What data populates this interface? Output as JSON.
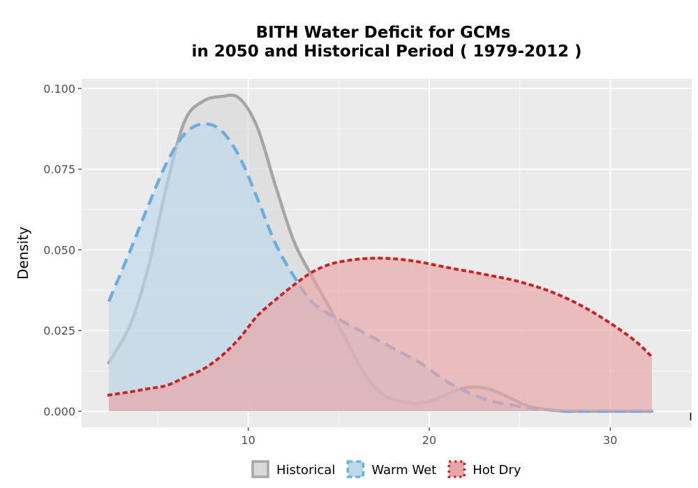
{
  "chart_data": {
    "type": "area",
    "title_line1": "BITH  Water Deficit for GCMs",
    "title_line2": "in 2050 and Historical Period ( 1979-2012 )",
    "xlabel": "",
    "ylabel": "Density",
    "xlim": [
      0.8,
      34.5
    ],
    "ylim": [
      -0.005,
      0.103
    ],
    "x_ticks": [
      10,
      20,
      30
    ],
    "y_ticks": [
      0.0,
      0.025,
      0.05,
      0.075,
      0.1
    ],
    "y_tick_labels": [
      "0.000",
      "0.025",
      "0.050",
      "0.075",
      "0.100"
    ],
    "grid": true,
    "legend_position": "bottom",
    "series": [
      {
        "name": "Historical",
        "line_style": "solid",
        "line_color": "#a6a6a6",
        "fill_color": "#d9d9d9",
        "x": [
          2.3,
          3.5,
          4.5,
          5.5,
          6.5,
          7.5,
          8.5,
          9.5,
          10.5,
          11.5,
          12.5,
          13.5,
          14.5,
          15.5,
          16.5,
          17.5,
          18.5,
          19.5,
          20.5,
          21.5,
          22.5,
          23.5,
          24.5,
          25.5,
          26.5,
          27.5,
          28.5,
          29.5,
          30.5,
          31.5,
          32.3
        ],
        "y": [
          0.015,
          0.027,
          0.045,
          0.07,
          0.09,
          0.096,
          0.0975,
          0.097,
          0.088,
          0.07,
          0.053,
          0.042,
          0.032,
          0.021,
          0.011,
          0.005,
          0.003,
          0.0025,
          0.004,
          0.0065,
          0.0075,
          0.0065,
          0.004,
          0.0015,
          0.0005,
          0.0,
          0.0,
          0.0,
          0.0,
          0.0,
          0.0
        ]
      },
      {
        "name": "Warm Wet",
        "line_style": "dashed",
        "line_color": "#6aafde",
        "fill_color": "#bcd9ea",
        "x": [
          2.3,
          3.5,
          4.5,
          5.5,
          6.5,
          7.5,
          8.5,
          9.5,
          10.5,
          11.5,
          12.5,
          13.5,
          14.5,
          15.5,
          16.5,
          17.5,
          18.5,
          19.5,
          20.5,
          21.5,
          22.5,
          23.5,
          24.5,
          25.5,
          26.5,
          27.5,
          28.5,
          29.5,
          30.5,
          31.5,
          32.3
        ],
        "y": [
          0.034,
          0.05,
          0.064,
          0.077,
          0.086,
          0.089,
          0.087,
          0.079,
          0.066,
          0.052,
          0.042,
          0.034,
          0.03,
          0.027,
          0.024,
          0.021,
          0.018,
          0.015,
          0.011,
          0.0075,
          0.005,
          0.003,
          0.002,
          0.001,
          0.0005,
          0.0,
          0.0,
          0.0,
          0.0,
          0.0,
          0.0
        ]
      },
      {
        "name": "Hot Dry",
        "line_style": "dotted",
        "line_color": "#cc2222",
        "fill_color": "#e8a4a6",
        "x": [
          2.3,
          3.5,
          4.5,
          5.5,
          6.5,
          7.5,
          8.5,
          9.5,
          10.5,
          11.5,
          12.5,
          13.5,
          14.5,
          15.5,
          16.5,
          17.5,
          18.5,
          19.5,
          20.5,
          21.5,
          22.5,
          23.5,
          24.5,
          25.5,
          26.5,
          27.5,
          28.5,
          29.5,
          30.5,
          31.5,
          32.3
        ],
        "y": [
          0.005,
          0.006,
          0.007,
          0.008,
          0.0105,
          0.013,
          0.017,
          0.0225,
          0.0295,
          0.0345,
          0.039,
          0.043,
          0.0455,
          0.0467,
          0.0473,
          0.0474,
          0.047,
          0.0462,
          0.0451,
          0.044,
          0.043,
          0.0419,
          0.0408,
          0.0393,
          0.0375,
          0.0352,
          0.0324,
          0.0291,
          0.0254,
          0.0212,
          0.0168
        ]
      }
    ]
  }
}
